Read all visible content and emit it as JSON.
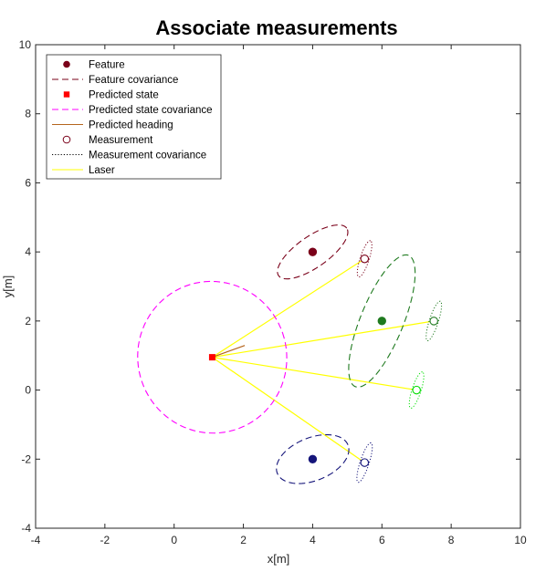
{
  "chart_data": {
    "type": "scatter",
    "title": "Associate measurements",
    "xlabel": "x[m]",
    "ylabel": "y[m]",
    "xlim": [
      -4,
      10
    ],
    "ylim": [
      -4,
      10
    ],
    "xticks": [
      -4,
      -2,
      0,
      2,
      4,
      6,
      8,
      10
    ],
    "yticks": [
      -4,
      -2,
      0,
      2,
      4,
      6,
      8,
      10
    ],
    "grid": false,
    "legend_position": "top-left",
    "legend": [
      {
        "label": "Feature",
        "kind": "filled-circle",
        "color": "#7a0019"
      },
      {
        "label": "Feature covariance",
        "kind": "dashed-line",
        "color": "#7a0019"
      },
      {
        "label": "Predicted state",
        "kind": "square",
        "color": "#ff0000"
      },
      {
        "label": "Predicted state covariance",
        "kind": "dashed-line",
        "color": "#ff00ff"
      },
      {
        "label": "Predicted heading",
        "kind": "solid-line",
        "color": "#b5651d"
      },
      {
        "label": "Measurement",
        "kind": "open-circle",
        "color": "#7a0019"
      },
      {
        "label": "Measurement covariance",
        "kind": "dotted-line",
        "color": "#000000"
      },
      {
        "label": "Laser",
        "kind": "solid-line",
        "color": "#ffff00"
      }
    ],
    "predicted_state": {
      "x": 1.1,
      "y": 0.95,
      "heading_deg": 20,
      "heading_length": 1.0,
      "color": "#ff0000",
      "heading_color": "#b5651d"
    },
    "predicted_state_covariance": {
      "cx": 1.1,
      "cy": 0.95,
      "rx": 2.15,
      "ry": 2.2,
      "angle_deg": 15,
      "color": "#ff00ff"
    },
    "features": [
      {
        "x": 4.0,
        "y": 4.0,
        "color": "#7a0019",
        "cov": {
          "rx": 1.2,
          "ry": 0.45,
          "angle_deg": 35
        }
      },
      {
        "x": 6.0,
        "y": 2.0,
        "color": "#1f7a1f",
        "cov": {
          "rx": 2.05,
          "ry": 0.62,
          "angle_deg": 68
        }
      },
      {
        "x": 4.0,
        "y": -2.0,
        "color": "#15157a",
        "cov": {
          "rx": 1.1,
          "ry": 0.62,
          "angle_deg": 22
        }
      }
    ],
    "measurements": [
      {
        "x": 5.5,
        "y": 3.8,
        "color": "#7a0019",
        "cov_color": "#7a0019",
        "cov": {
          "rx": 0.55,
          "ry": 0.13,
          "angle_deg": 72
        }
      },
      {
        "x": 7.5,
        "y": 2.0,
        "color": "#1f7a1f",
        "cov_color": "#1f7a1f",
        "cov": {
          "rx": 0.6,
          "ry": 0.13,
          "angle_deg": 72
        }
      },
      {
        "x": 7.0,
        "y": 0.0,
        "color": "#00dd00",
        "cov_color": "#00dd00",
        "cov": {
          "rx": 0.55,
          "ry": 0.13,
          "angle_deg": 72
        }
      },
      {
        "x": 5.5,
        "y": -2.1,
        "color": "#15157a",
        "cov_color": "#15157a",
        "cov": {
          "rx": 0.6,
          "ry": 0.13,
          "angle_deg": 72
        }
      }
    ],
    "laser_color": "#ffff00"
  }
}
